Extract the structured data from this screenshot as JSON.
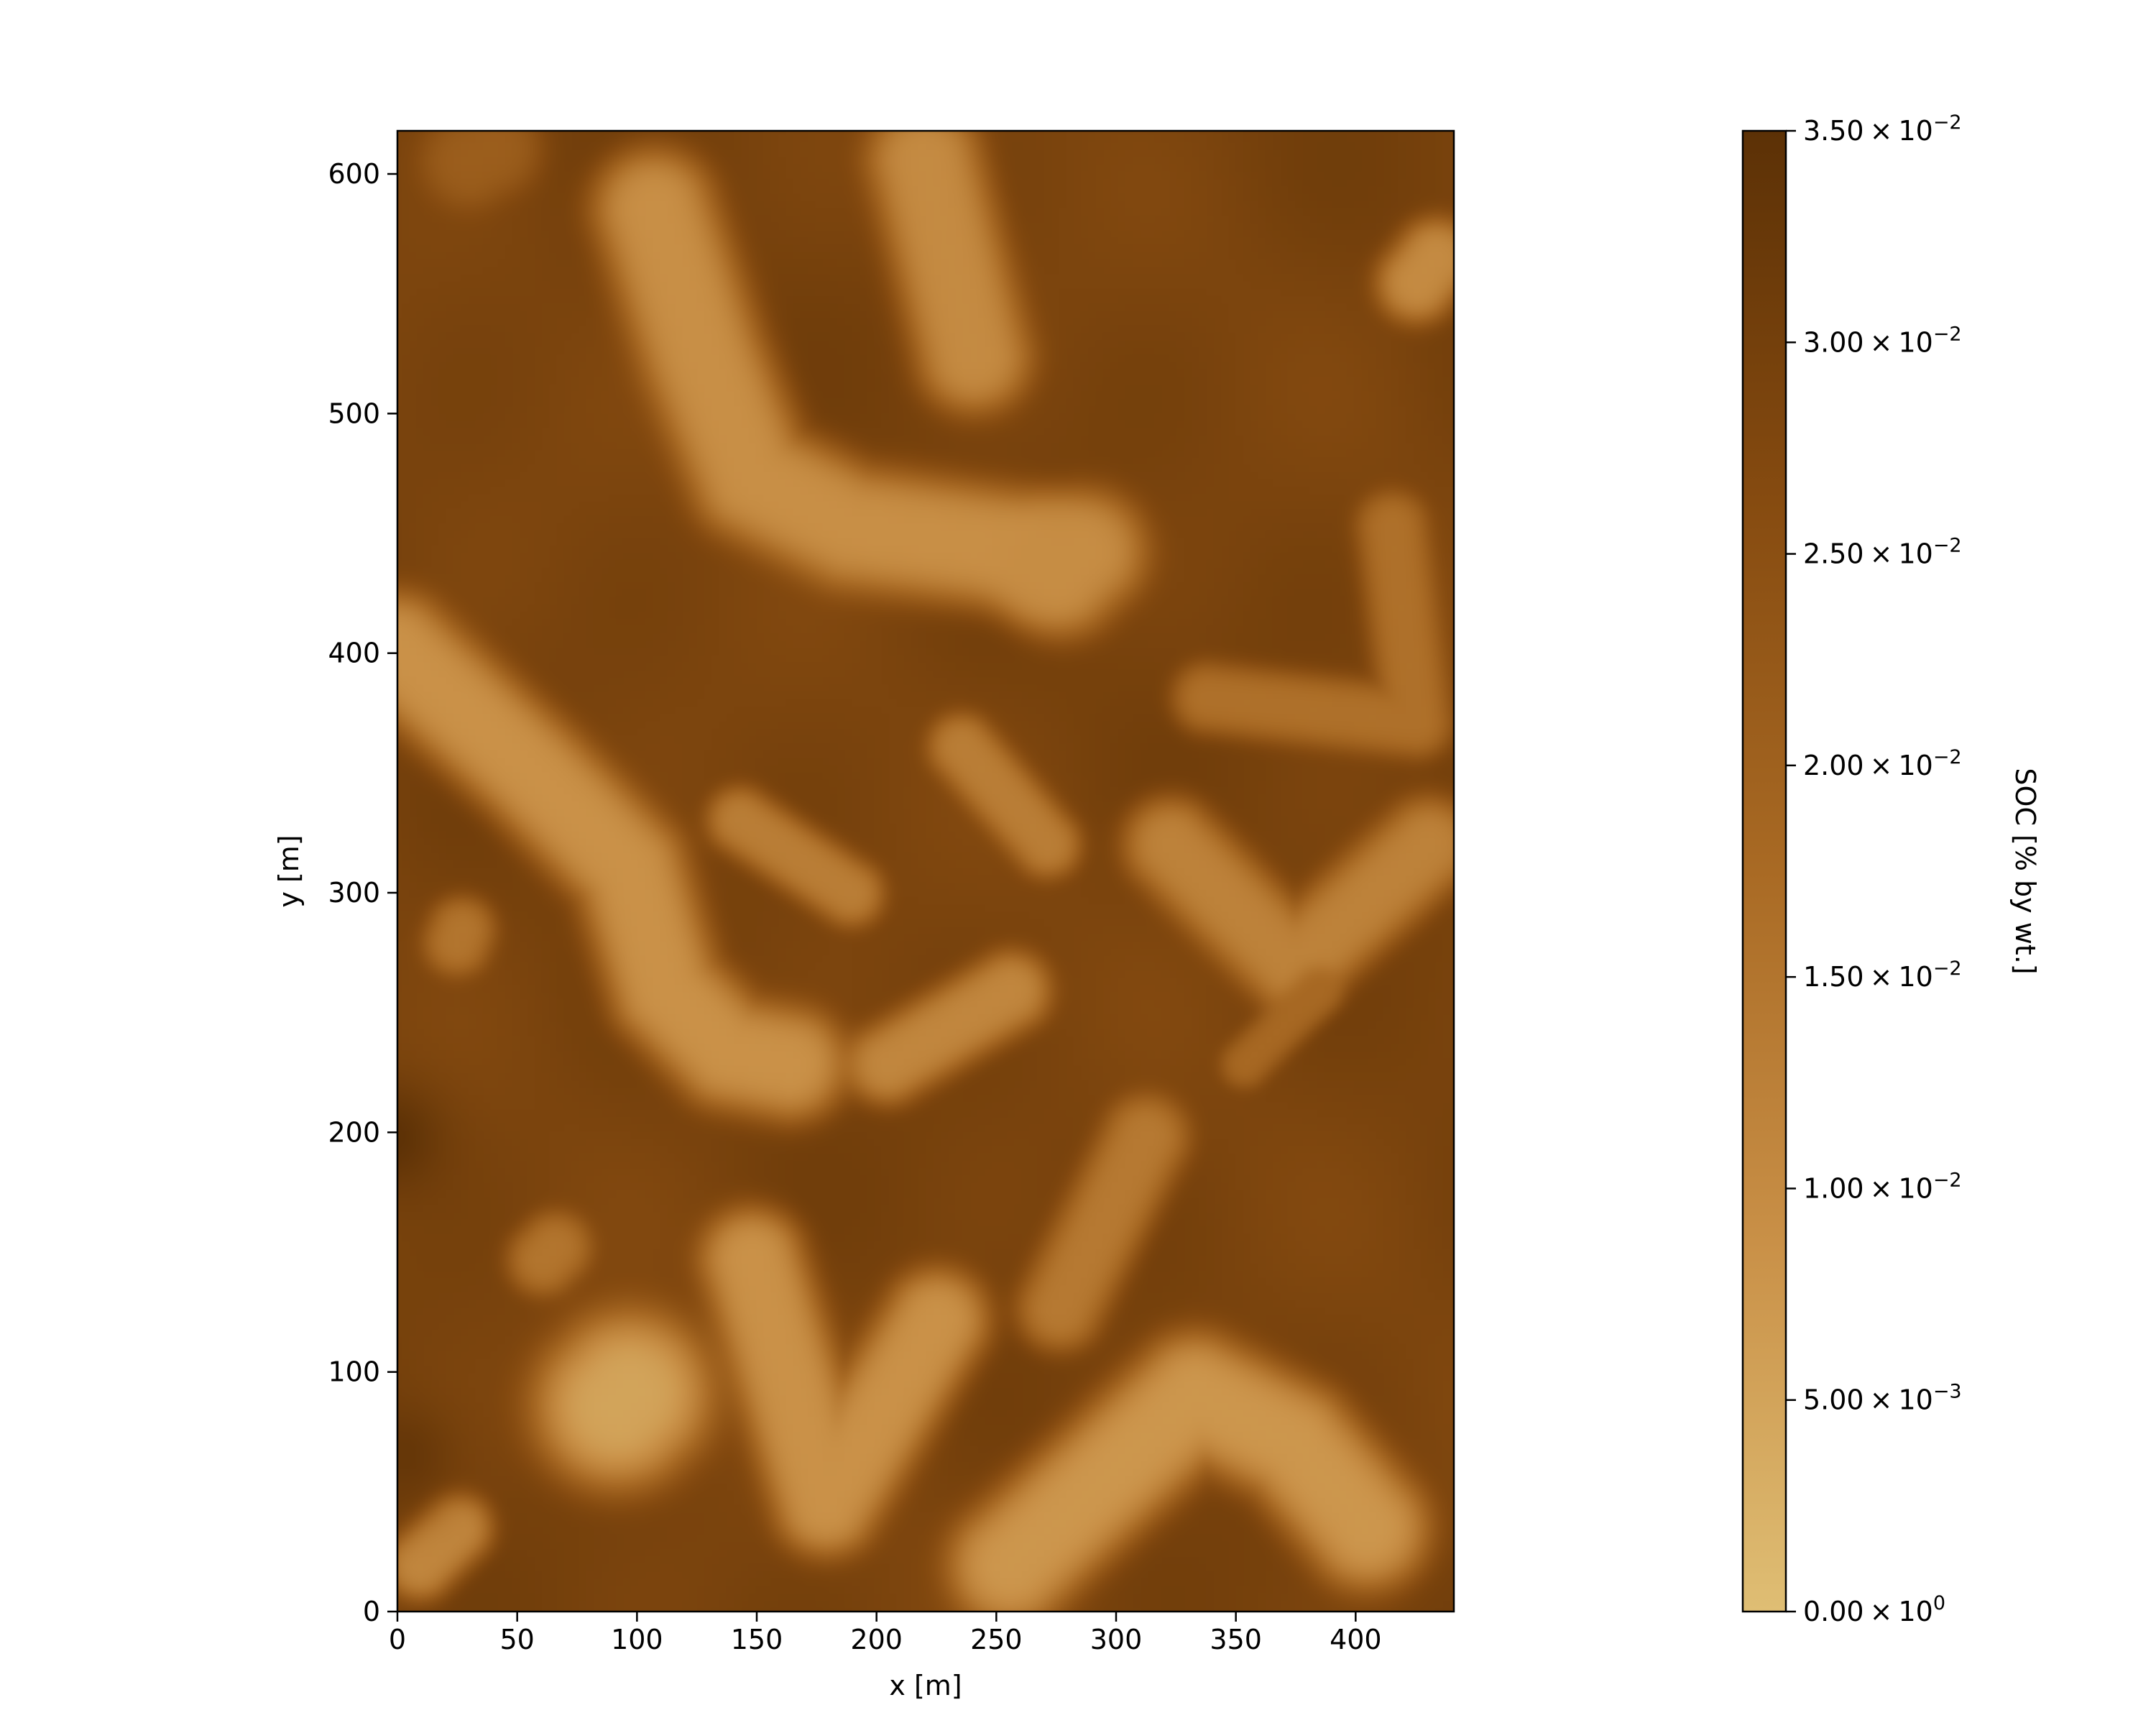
{
  "chart_data": {
    "type": "heatmap",
    "title": "",
    "xlabel": "x [m]",
    "ylabel": "y [m]",
    "xlim": [
      0,
      441
    ],
    "ylim": [
      0,
      618
    ],
    "x_ticks": [
      0,
      50,
      100,
      150,
      200,
      250,
      300,
      350,
      400
    ],
    "y_ticks": [
      0,
      100,
      200,
      300,
      400,
      500,
      600
    ],
    "grid": false,
    "colormap": [
      "#dfbe74",
      "#c99047",
      "#a96a24",
      "#864b10",
      "#5c3106"
    ],
    "colorbar": {
      "label": "SOC [% by wt.]",
      "range": [
        0.0,
        0.035
      ],
      "ticks": [
        {
          "value": 0.0,
          "mantissa": "0.00",
          "exponent": "0"
        },
        {
          "value": 0.005,
          "mantissa": "5.00",
          "exponent": "−3"
        },
        {
          "value": 0.01,
          "mantissa": "1.00",
          "exponent": "−2"
        },
        {
          "value": 0.015,
          "mantissa": "1.50",
          "exponent": "−2"
        },
        {
          "value": 0.02,
          "mantissa": "2.00",
          "exponent": "−2"
        },
        {
          "value": 0.025,
          "mantissa": "2.50",
          "exponent": "−2"
        },
        {
          "value": 0.03,
          "mantissa": "3.00",
          "exponent": "−2"
        },
        {
          "value": 0.035,
          "mantissa": "3.50",
          "exponent": "−2"
        }
      ]
    },
    "background_value": 0.029,
    "features": [
      {
        "path": [
          [
            5,
            400
          ],
          [
            60,
            350
          ],
          [
            100,
            310
          ],
          [
            115,
            260
          ],
          [
            140,
            235
          ],
          [
            165,
            230
          ]
        ],
        "half_width": 24,
        "value": 0.0085
      },
      {
        "path": [
          [
            110,
            580
          ],
          [
            130,
            520
          ],
          [
            150,
            470
          ],
          [
            190,
            450
          ],
          [
            260,
            440
          ]
        ],
        "half_width": 26,
        "value": 0.009
      },
      {
        "path": [
          [
            220,
            600
          ],
          [
            230,
            560
          ],
          [
            240,
            520
          ]
        ],
        "half_width": 24,
        "value": 0.01
      },
      {
        "path": [
          [
            275,
            430
          ],
          [
            285,
            440
          ]
        ],
        "half_width": 26,
        "value": 0.0095
      },
      {
        "path": [
          [
            95,
            90
          ],
          [
            100,
            95
          ]
        ],
        "half_width": 35,
        "value": 0.005
      },
      {
        "path": [
          [
            150,
            150
          ],
          [
            180,
            50
          ],
          [
            225,
            125
          ]
        ],
        "half_width": 22,
        "value": 0.0085
      },
      {
        "path": [
          [
            255,
            25
          ],
          [
            330,
            95
          ],
          [
            370,
            75
          ],
          [
            400,
            40
          ]
        ],
        "half_width": 26,
        "value": 0.0075
      },
      {
        "path": [
          [
            320,
            320
          ],
          [
            370,
            270
          ],
          [
            425,
            320
          ]
        ],
        "half_width": 20,
        "value": 0.012
      },
      {
        "path": [
          [
            145,
            330
          ],
          [
            190,
            300
          ]
        ],
        "half_width": 14,
        "value": 0.013
      },
      {
        "path": [
          [
            235,
            360
          ],
          [
            270,
            320
          ]
        ],
        "half_width": 14,
        "value": 0.013
      },
      {
        "path": [
          [
            205,
            230
          ],
          [
            255,
            260
          ]
        ],
        "half_width": 17,
        "value": 0.011
      },
      {
        "path": [
          [
            275,
            130
          ],
          [
            310,
            200
          ]
        ],
        "half_width": 18,
        "value": 0.014
      },
      {
        "path": [
          [
            335,
            380
          ],
          [
            420,
            370
          ],
          [
            410,
            450
          ]
        ],
        "half_width": 15,
        "value": 0.016
      },
      {
        "path": [
          [
            420,
            550
          ],
          [
            428,
            560
          ]
        ],
        "half_width": 17,
        "value": 0.01
      },
      {
        "path": [
          [
            15,
            25
          ],
          [
            30,
            40
          ]
        ],
        "half_width": 15,
        "value": 0.011
      },
      {
        "path": [
          [
            30,
            280
          ],
          [
            32,
            285
          ]
        ],
        "half_width": 14,
        "value": 0.015
      },
      {
        "path": [
          [
            65,
            150
          ],
          [
            70,
            155
          ]
        ],
        "half_width": 15,
        "value": 0.015
      },
      {
        "path": [
          [
            35,
            600
          ],
          [
            45,
            605
          ]
        ],
        "half_width": 20,
        "value": 0.021
      },
      {
        "path": [
          [
            350,
            230
          ],
          [
            380,
            260
          ]
        ],
        "half_width": 10,
        "value": 0.018
      }
    ],
    "dark_spots": [
      {
        "x": 2,
        "y": 200,
        "radius": 22,
        "value": 0.035
      },
      {
        "x": 8,
        "y": 70,
        "radius": 20,
        "value": 0.033
      }
    ]
  }
}
